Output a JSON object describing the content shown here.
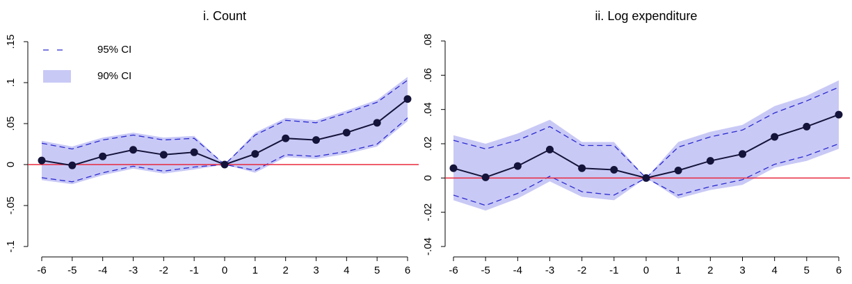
{
  "chart_data": [
    {
      "type": "line",
      "title": "i. Count",
      "legend": "upper left",
      "hline": 0,
      "hline_color": "#e8283c",
      "x": [
        -6,
        -5,
        -4,
        -3,
        -2,
        -1,
        0,
        1,
        2,
        3,
        4,
        5,
        6
      ],
      "xlim": [
        -6,
        6
      ],
      "xticks": [
        -6,
        -5,
        -4,
        -3,
        -2,
        -1,
        0,
        1,
        2,
        3,
        4,
        5,
        6
      ],
      "ylim": [
        -0.1,
        0.15
      ],
      "yticks": [
        {
          "value": -0.1,
          "label": "-.1"
        },
        {
          "value": -0.05,
          "label": "-.05"
        },
        0,
        {
          "value": 0.05,
          "label": ".05"
        },
        {
          "value": 0.1,
          "label": ".1"
        },
        {
          "value": 0.15,
          "label": ".15"
        }
      ],
      "series": [
        {
          "style": "points",
          "color": "#14143a",
          "values": [
            0.005,
            -0.001,
            0.01,
            0.018,
            0.012,
            0.015,
            0,
            0.013,
            0.032,
            0.03,
            0.039,
            0.051,
            0.08
          ]
        },
        {
          "name": "95% CI",
          "style": "dashed",
          "color": "#2a2ad0",
          "upper": [
            0.026,
            0.019,
            0.03,
            0.036,
            0.03,
            0.032,
            0,
            0.036,
            0.054,
            0.051,
            0.063,
            0.076,
            0.103
          ],
          "lower": [
            -0.016,
            -0.021,
            -0.01,
            -0.002,
            -0.008,
            -0.003,
            0,
            -0.007,
            0.012,
            0.01,
            0.016,
            0.025,
            0.057
          ]
        },
        {
          "name": "90% CI",
          "style": "band",
          "color": "#c9c9f6",
          "upper": [
            0.029,
            0.022,
            0.033,
            0.039,
            0.033,
            0.035,
            0,
            0.039,
            0.057,
            0.054,
            0.066,
            0.079,
            0.107
          ],
          "lower": [
            -0.019,
            -0.024,
            -0.013,
            -0.005,
            -0.011,
            -0.006,
            0,
            -0.01,
            0.009,
            0.007,
            0.013,
            0.022,
            0.053
          ]
        }
      ]
    },
    {
      "type": "line",
      "title": "ii. Log expenditure",
      "hline": 0,
      "hline_color": "#e8283c",
      "x": [
        -6,
        -5,
        -4,
        -3,
        -2,
        -1,
        0,
        1,
        2,
        3,
        4,
        5,
        6
      ],
      "xlim": [
        -6,
        6
      ],
      "xticks": [
        -6,
        -5,
        -4,
        -3,
        -2,
        -1,
        0,
        1,
        2,
        3,
        4,
        5,
        6
      ],
      "ylim": [
        -0.04,
        0.08
      ],
      "yticks": [
        {
          "value": -0.04,
          "label": "-.04"
        },
        {
          "value": -0.02,
          "label": "-.02"
        },
        0,
        {
          "value": 0.02,
          "label": ".02"
        },
        {
          "value": 0.04,
          "label": ".04"
        },
        {
          "value": 0.06,
          "label": ".06"
        },
        {
          "value": 0.08,
          "label": ".08"
        }
      ],
      "series": [
        {
          "style": "points",
          "color": "#14143a",
          "values": [
            0.0057,
            0.0004,
            0.007,
            0.0166,
            0.0057,
            0.0048,
            0,
            0.0044,
            0.01,
            0.014,
            0.024,
            0.03,
            0.037
          ]
        },
        {
          "style": "dashed",
          "color": "#2a2ad0",
          "upper": [
            0.022,
            0.017,
            0.022,
            0.03,
            0.019,
            0.019,
            0,
            0.018,
            0.024,
            0.028,
            0.038,
            0.045,
            0.053
          ],
          "lower": [
            -0.01,
            -0.016,
            -0.009,
            0.001,
            -0.008,
            -0.01,
            0,
            -0.01,
            -0.005,
            -0.001,
            0.008,
            0.013,
            0.02
          ]
        },
        {
          "style": "band",
          "color": "#c9c9f6",
          "upper": [
            0.025,
            0.02,
            0.026,
            0.034,
            0.021,
            0.021,
            0,
            0.021,
            0.027,
            0.031,
            0.042,
            0.048,
            0.057
          ],
          "lower": [
            -0.013,
            -0.019,
            -0.012,
            -0.002,
            -0.011,
            -0.013,
            0,
            -0.012,
            -0.007,
            -0.004,
            0.006,
            0.01,
            0.017
          ]
        }
      ]
    }
  ]
}
